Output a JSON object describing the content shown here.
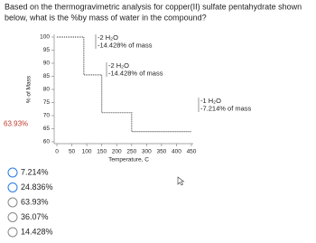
{
  "question": {
    "lines": [
      "Based on the thermogravimetric analysis for copper(II) sulfate pentahydrate shown",
      "below, what is the %by mass of water in the compound?"
    ]
  },
  "chart_data": {
    "type": "line",
    "ylabel": "% of Mass",
    "xlabel": "Temperature, C",
    "x": [
      0,
      90,
      90,
      150,
      150,
      250,
      250,
      450
    ],
    "series": [
      {
        "name": "mass",
        "color": "#555555",
        "values": [
          100,
          100,
          85.572,
          85.572,
          71.144,
          71.144,
          63.93,
          63.93
        ]
      }
    ],
    "xlim": [
      0,
      450
    ],
    "ylim": [
      60,
      100
    ],
    "xticks": [
      0,
      50,
      100,
      150,
      200,
      250,
      300,
      350,
      400,
      450
    ],
    "yticks": [
      60,
      65,
      70,
      75,
      80,
      85,
      90,
      95,
      100
    ],
    "annotations": [
      [
        "-2 H₂O",
        "-14.428% of mass"
      ],
      [
        "-2 H₂O",
        "-14.428% of mass"
      ],
      [
        "-1 H₂O",
        "-7.214% of mass"
      ]
    ],
    "marker_label": "63.93%"
  },
  "options": [
    "7.214%",
    "24.836%",
    "63.93%",
    "36.07%",
    "14.428%"
  ]
}
